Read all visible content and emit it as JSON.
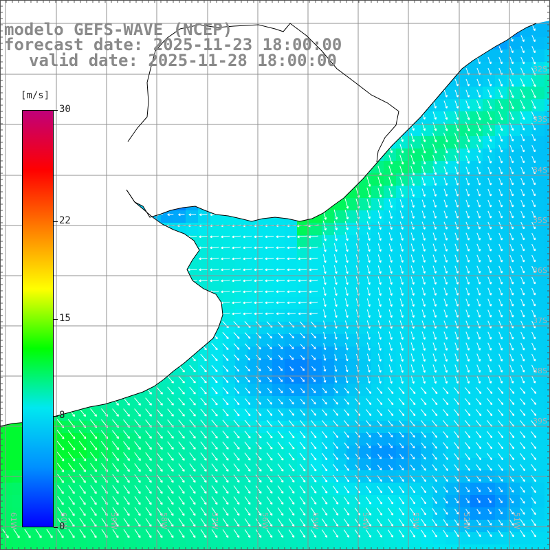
{
  "title": {
    "line1": "modelo GEFS-WAVE (NCEP)",
    "line2": "forecast date: 2025-11-23 18:00:00",
    "line3": "valid date: 2025-11-28 18:00:00"
  },
  "colorbar": {
    "unit": "[m/s]",
    "tick_labels": [
      "30",
      "22",
      "15",
      "8",
      "0"
    ],
    "tick_values": [
      30,
      22,
      15,
      8,
      0
    ],
    "range": [
      0,
      30
    ],
    "colors": [
      "#0000ff",
      "#0090ff",
      "#00e8f0",
      "#00ff00",
      "#ffff00",
      "#ff8000",
      "#ff0000",
      "#c0007a"
    ]
  },
  "map": {
    "lat_labels": [
      "32S",
      "33S",
      "34S",
      "35S",
      "36S",
      "37S",
      "38S",
      "39S"
    ],
    "lon_labels": [
      "61W",
      "60W",
      "59W",
      "58W",
      "57W",
      "56W",
      "55W",
      "54W",
      "53W",
      "52W",
      "51W"
    ],
    "ocean_color": "#0aa0ff",
    "land_color": "#ffffff",
    "grid_color": "#909090",
    "coast_color": "#000000",
    "arrow_color": "#ffffff"
  }
}
